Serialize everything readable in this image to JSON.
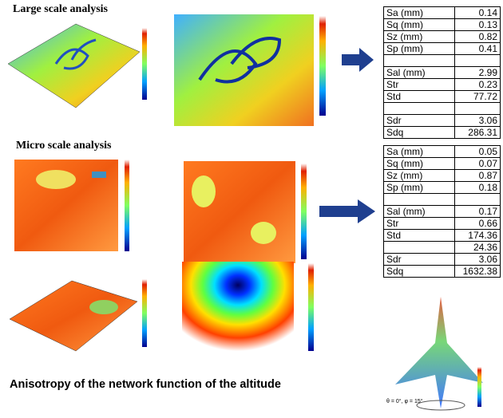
{
  "large_scale": {
    "heading": "Large scale analysis",
    "table": {
      "rows": [
        [
          "Sa (mm)",
          "0.14"
        ],
        [
          "Sq (mm)",
          "0.13"
        ],
        [
          "Sz (mm)",
          "0.82"
        ],
        [
          "Sp (mm)",
          "0.41"
        ],
        null,
        [
          "Sal (mm)",
          "2.99"
        ],
        [
          "Str",
          "0.23"
        ],
        [
          "Std",
          "77.72"
        ],
        null,
        [
          "Sdr",
          "3.06"
        ],
        [
          "Sdq",
          "286.31"
        ]
      ]
    }
  },
  "micro_scale": {
    "heading": "Micro scale analysis",
    "table": {
      "rows": [
        [
          "Sa (mm)",
          "0.05"
        ],
        [
          "Sq (mm)",
          "0.07"
        ],
        [
          "Sz (mm)",
          "0.87"
        ],
        [
          "Sp (mm)",
          "0.18"
        ],
        null,
        [
          "Sal (mm)",
          "0.17"
        ],
        [
          "Str",
          "0.66"
        ],
        [
          "Std",
          "174.36"
        ],
        [
          null,
          "24.36"
        ],
        [
          "Sdr",
          "3.06"
        ],
        [
          "Sdq",
          "1632.38"
        ]
      ]
    }
  },
  "caption": "Anisotropy of the network function of the altitude",
  "angle_label": "θ = 0°, φ = 15°"
}
